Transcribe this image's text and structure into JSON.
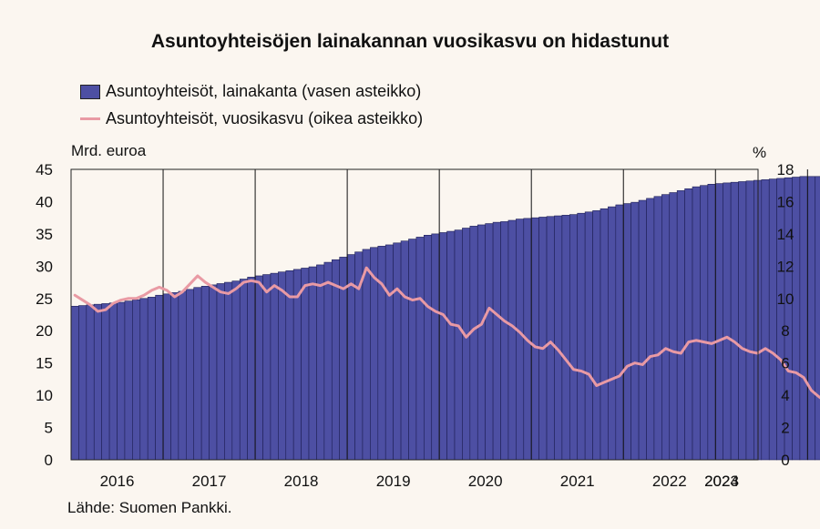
{
  "chart_data": {
    "type": "bar+line",
    "title": "Asuntoyhteisöjen lainakannan vuosikasvu on hidastunut",
    "source": "Lähde: Suomen Pankki.",
    "left_axis": {
      "unit": "Mrd. euroa",
      "min": 0,
      "max": 45,
      "ticks": [
        0,
        5,
        10,
        15,
        20,
        25,
        30,
        35,
        40,
        45
      ]
    },
    "right_axis": {
      "unit": "%",
      "min": 0,
      "max": 18,
      "ticks": [
        0,
        2,
        4,
        6,
        8,
        10,
        12,
        14,
        16,
        18
      ]
    },
    "x_labels": [
      "2016",
      "2017",
      "2018",
      "2019",
      "2020",
      "2021",
      "2022",
      "2023",
      "2024"
    ],
    "start": "2016-01",
    "grid": "vertical, at year boundaries",
    "legend_position": "top-left",
    "series": [
      {
        "name": "Asuntoyhteisöt, lainakanta (vasen asteikko)",
        "kind": "bar",
        "axis": "left",
        "color": "#4d4fa3",
        "values": [
          23.8,
          23.9,
          24.0,
          24.1,
          24.2,
          24.3,
          24.4,
          24.6,
          24.8,
          25.0,
          25.2,
          25.5,
          25.7,
          25.9,
          26.1,
          26.4,
          26.7,
          26.9,
          27.1,
          27.3,
          27.5,
          27.7,
          28.0,
          28.3,
          28.5,
          28.7,
          28.9,
          29.1,
          29.3,
          29.5,
          29.7,
          29.9,
          30.2,
          30.6,
          31.0,
          31.4,
          31.8,
          32.2,
          32.6,
          32.9,
          33.1,
          33.3,
          33.6,
          33.9,
          34.2,
          34.5,
          34.8,
          35.0,
          35.2,
          35.4,
          35.6,
          35.9,
          36.2,
          36.4,
          36.6,
          36.8,
          36.9,
          37.1,
          37.3,
          37.4,
          37.5,
          37.6,
          37.7,
          37.8,
          37.9,
          38.0,
          38.2,
          38.4,
          38.6,
          38.9,
          39.2,
          39.5,
          39.7,
          39.9,
          40.2,
          40.5,
          40.8,
          41.1,
          41.4,
          41.7,
          42.0,
          42.3,
          42.5,
          42.7,
          42.8,
          42.9,
          43.0,
          43.1,
          43.2,
          43.3,
          43.4,
          43.5,
          43.6,
          43.7,
          43.8,
          43.9,
          43.9,
          43.9,
          44.0
        ]
      },
      {
        "name": "Asuntoyhteisöt, vuosikasvu (oikea asteikko)",
        "kind": "line",
        "axis": "right",
        "color": "#e99aa4",
        "values": [
          10.2,
          9.9,
          9.6,
          9.2,
          9.3,
          9.7,
          9.9,
          10.0,
          10.0,
          10.2,
          10.5,
          10.7,
          10.5,
          10.1,
          10.4,
          10.9,
          11.4,
          11.0,
          10.7,
          10.4,
          10.3,
          10.6,
          11.0,
          11.1,
          11.0,
          10.4,
          10.8,
          10.5,
          10.1,
          10.1,
          10.8,
          10.9,
          10.8,
          11.0,
          10.8,
          10.6,
          10.9,
          10.6,
          11.9,
          11.3,
          10.9,
          10.2,
          10.6,
          10.1,
          9.9,
          10.0,
          9.5,
          9.2,
          9.0,
          8.4,
          8.3,
          7.6,
          8.1,
          8.4,
          9.4,
          9.0,
          8.6,
          8.3,
          7.9,
          7.4,
          7.0,
          6.9,
          7.3,
          6.8,
          6.2,
          5.6,
          5.5,
          5.3,
          4.6,
          4.8,
          5.0,
          5.2,
          5.8,
          6.0,
          5.9,
          6.4,
          6.5,
          6.9,
          6.7,
          6.6,
          7.3,
          7.4,
          7.3,
          7.2,
          7.4,
          7.6,
          7.3,
          6.9,
          6.7,
          6.6,
          6.9,
          6.6,
          6.2,
          5.5,
          5.4,
          5.1,
          4.3,
          3.9,
          3.6,
          3.6,
          3.2
        ]
      }
    ]
  }
}
